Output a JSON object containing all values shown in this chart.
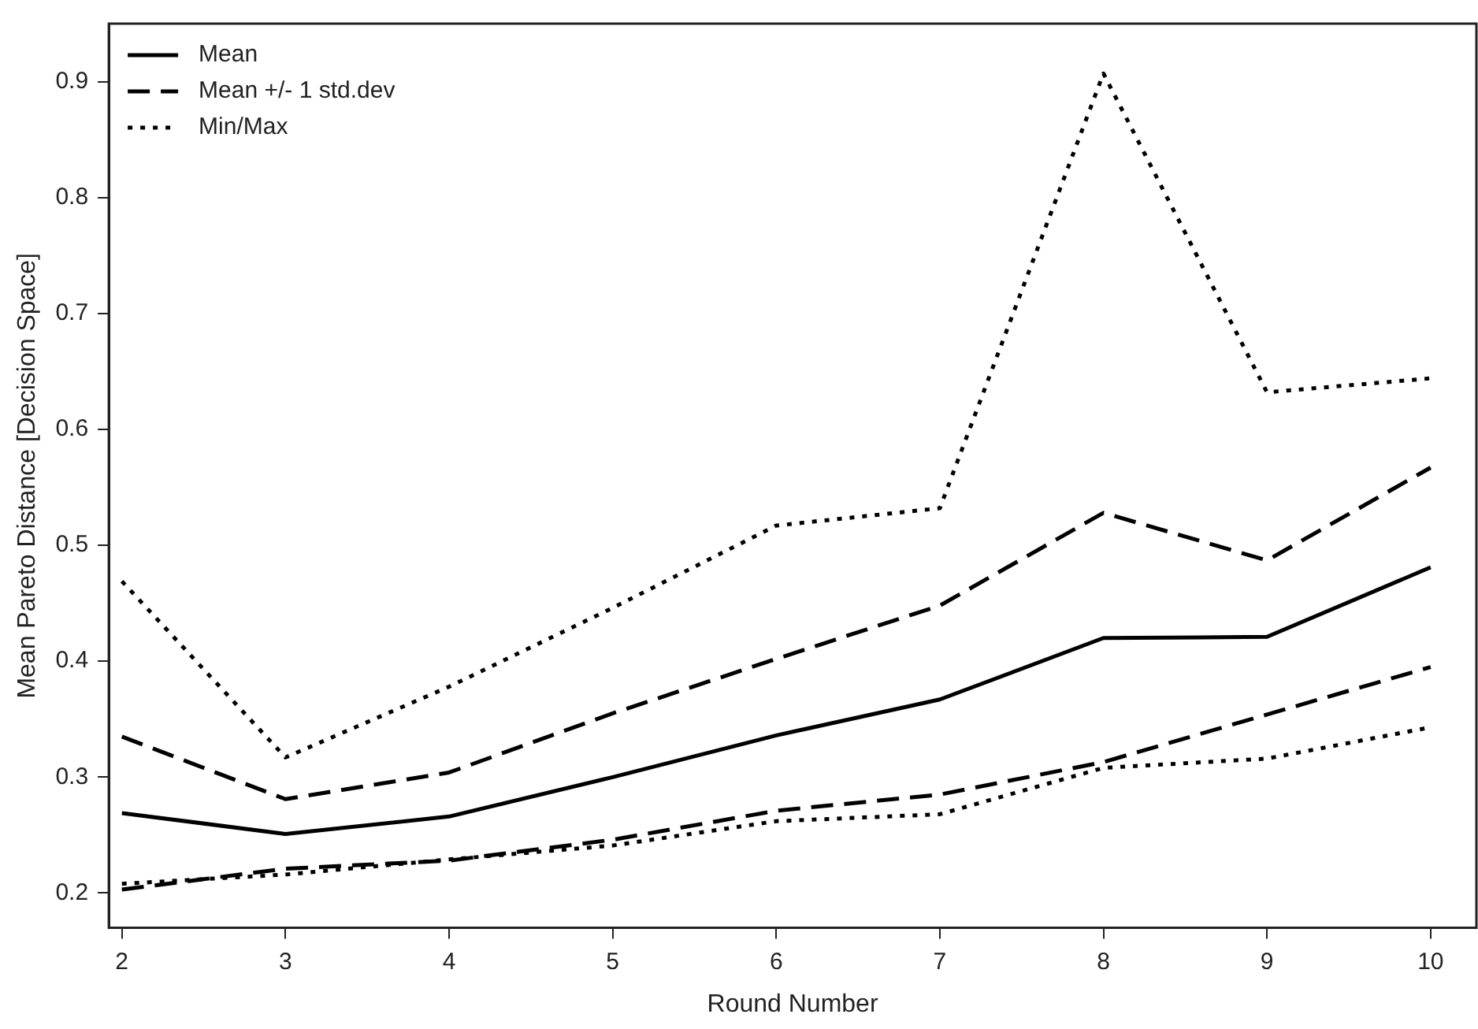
{
  "chart_data": {
    "type": "line",
    "xlabel": "Round Number",
    "ylabel": "Mean Pareto Distance [Decision Space]",
    "x": [
      2,
      3,
      4,
      5,
      6,
      7,
      8,
      9,
      10
    ],
    "xlim": [
      1.92,
      10.28
    ],
    "xticks": [
      2,
      3,
      4,
      5,
      6,
      7,
      8,
      9,
      10
    ],
    "ylim": [
      0.17,
      0.95
    ],
    "yticks": [
      0.2,
      0.3,
      0.4,
      0.5,
      0.6,
      0.7,
      0.8,
      0.9
    ],
    "grid": false,
    "legend": "top left",
    "marker": "none",
    "series": [
      {
        "name": "Mean",
        "color": "#000000",
        "line_style": "solid",
        "values": [
          0.269,
          0.251,
          0.266,
          0.3,
          0.336,
          0.367,
          0.42,
          0.421,
          0.481
        ]
      },
      {
        "name": "Mean +/- 1 std.dev",
        "color": "#000000",
        "line_style": "dashed",
        "values": [
          0.335,
          0.281,
          0.304,
          0.355,
          0.402,
          0.448,
          0.528,
          0.487,
          0.567
        ]
      },
      {
        "color": "#000000",
        "line_style": "dashed",
        "values": [
          0.203,
          0.221,
          0.228,
          0.246,
          0.271,
          0.285,
          0.313,
          0.354,
          0.395
        ]
      },
      {
        "name": "Min/Max",
        "color": "#000000",
        "line_style": "dotted",
        "values": [
          0.469,
          0.317,
          0.378,
          0.446,
          0.517,
          0.532,
          0.907,
          0.632,
          0.644
        ]
      },
      {
        "color": "#000000",
        "line_style": "dotted",
        "values": [
          0.208,
          0.216,
          0.229,
          0.241,
          0.262,
          0.268,
          0.308,
          0.316,
          0.343
        ]
      }
    ]
  }
}
